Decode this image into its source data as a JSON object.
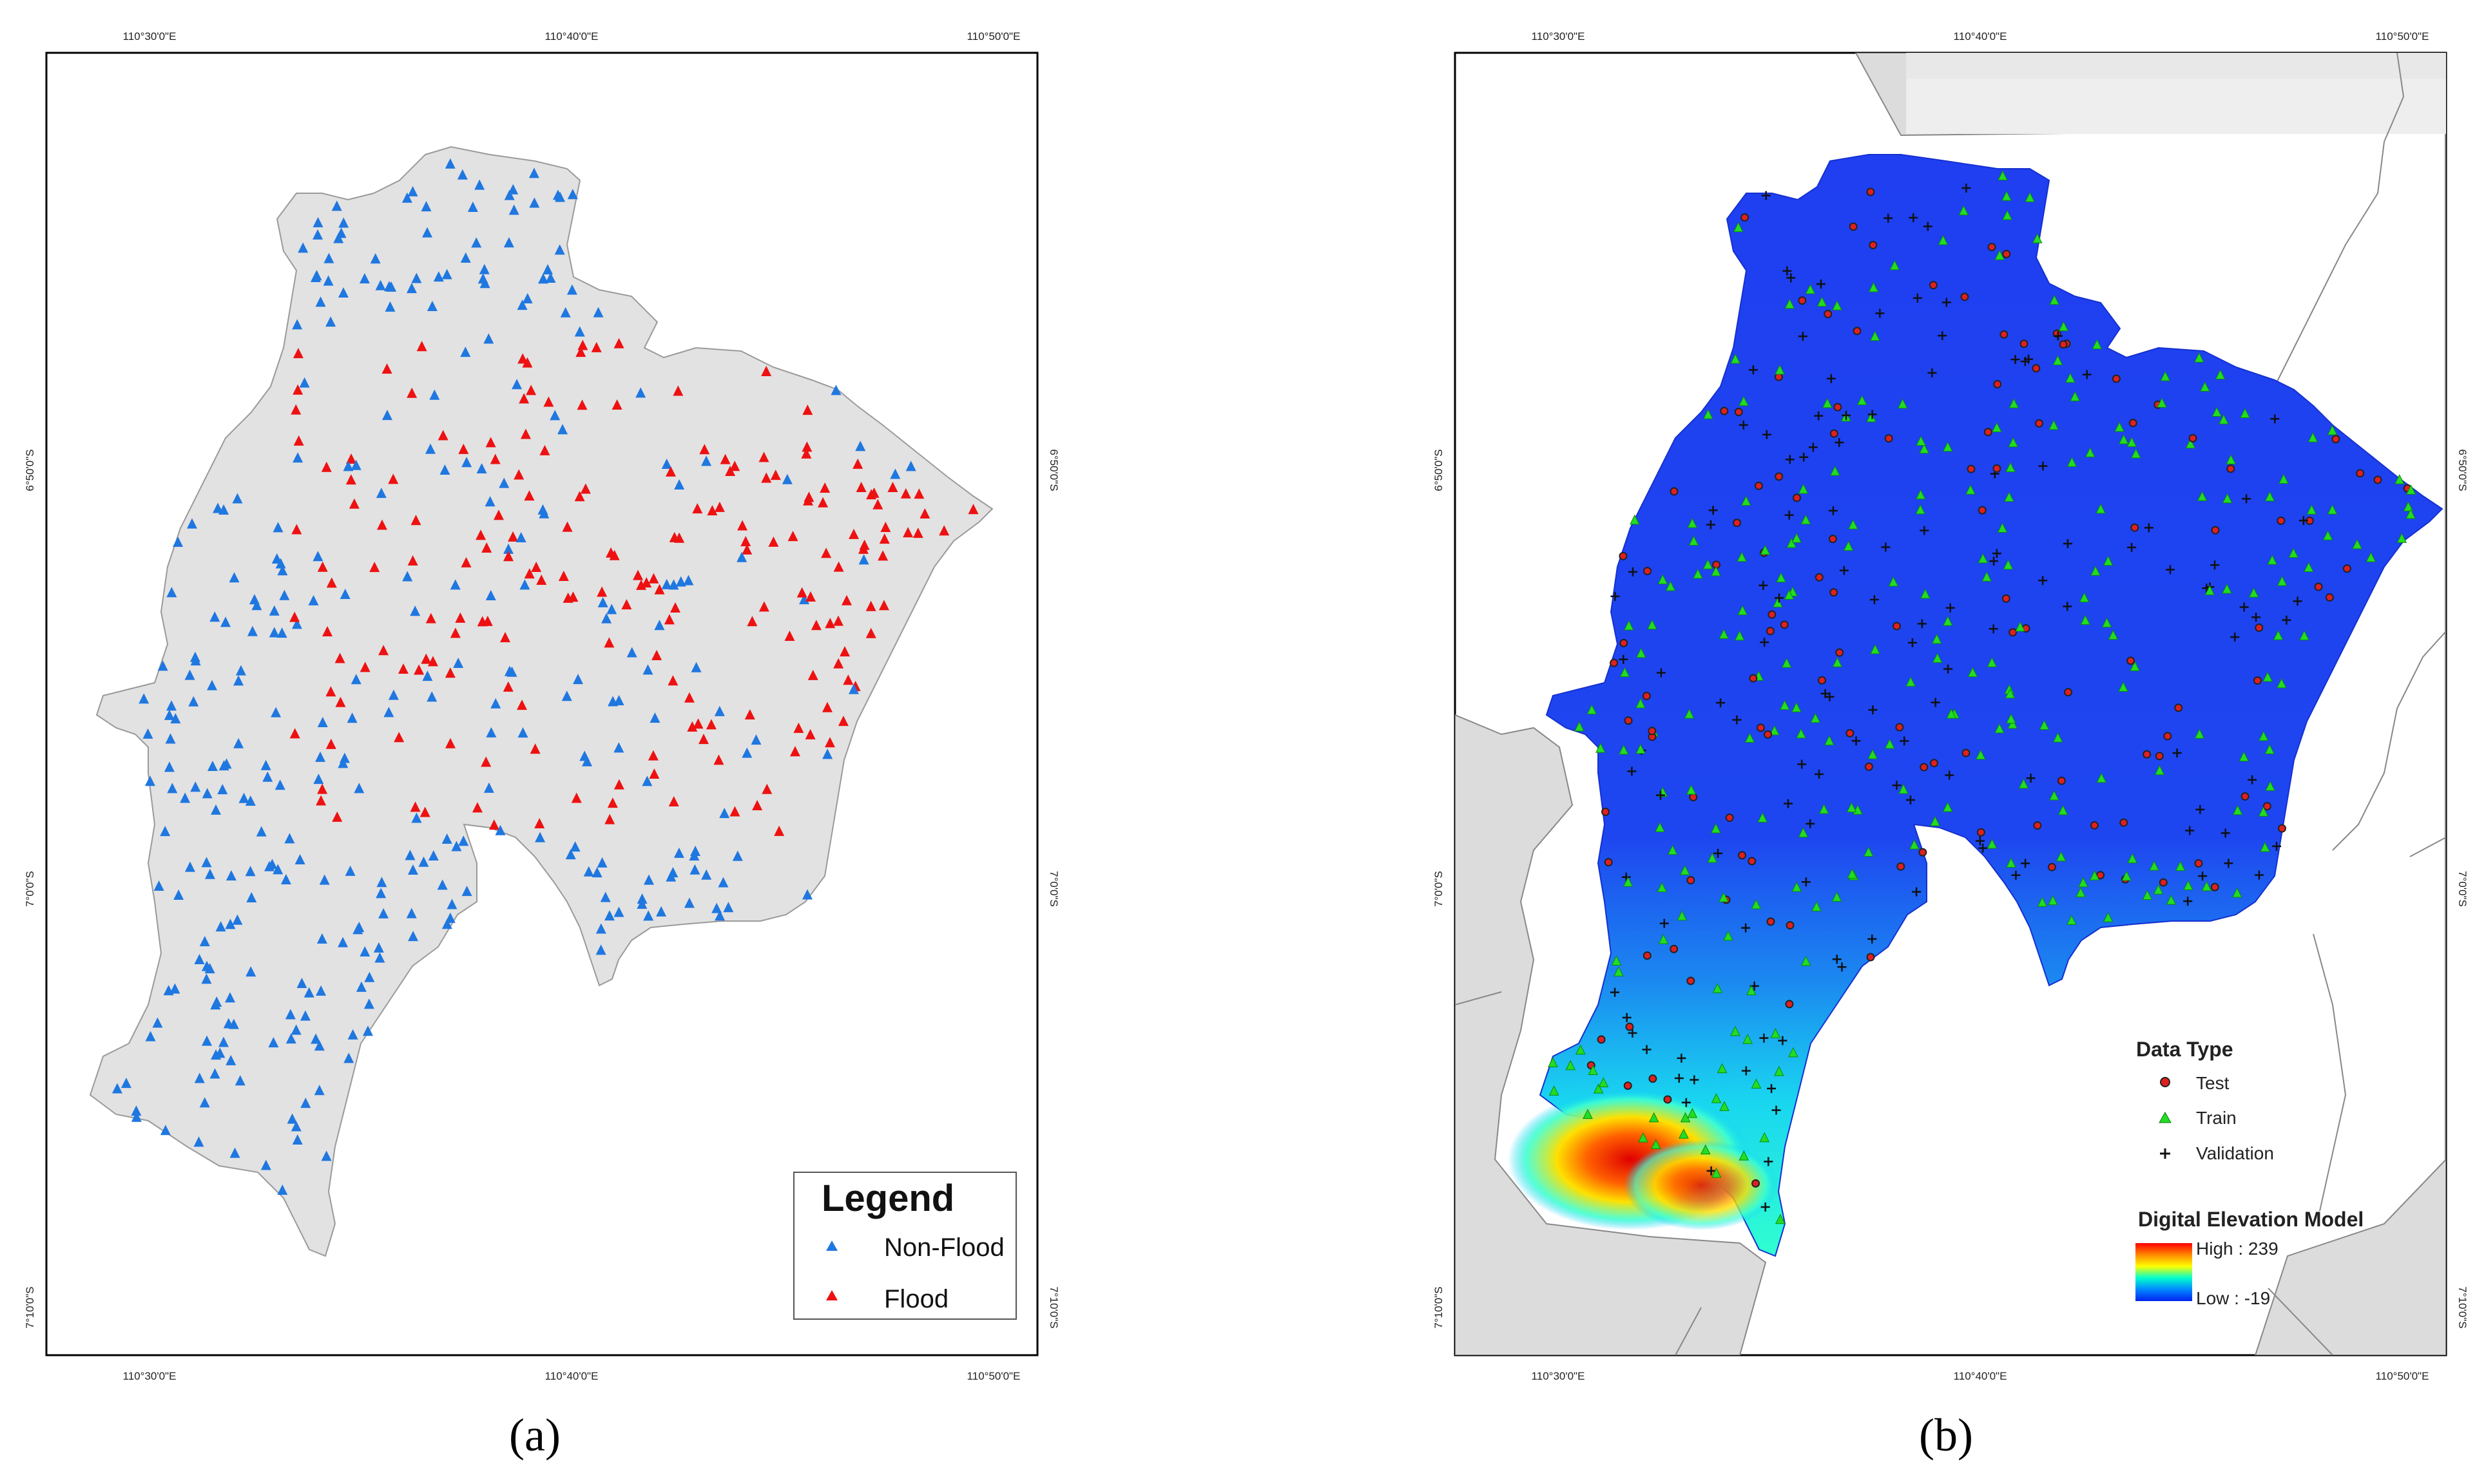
{
  "panel_a": {
    "caption": "(a)",
    "legend": {
      "title": "Legend",
      "items": [
        {
          "label": "Non-Flood",
          "color": "#1f77e0"
        },
        {
          "label": "Flood",
          "color": "#ee1111"
        }
      ]
    },
    "x_ticks": [
      "110°30'0\"E",
      "110°40'0\"E",
      "110°50'0\"E"
    ],
    "y_ticks": [
      "6°50'0\"S",
      "7°0'0\"S",
      "7°10'0\"S"
    ]
  },
  "panel_b": {
    "caption": "(b)",
    "data_type": {
      "title": "Data Type",
      "items": [
        {
          "label": "Test",
          "symbol": "red-circle",
          "color": "#e02020"
        },
        {
          "label": "Train",
          "symbol": "green-triangle",
          "color": "#22dd22"
        },
        {
          "label": "Validation",
          "symbol": "black-cross",
          "color": "#111111"
        }
      ]
    },
    "dem": {
      "title": "Digital Elevation Model",
      "high_label": "High : 239",
      "low_label": "Low : -19",
      "gradient": [
        "#ff0000",
        "#ff8800",
        "#ffff00",
        "#00ffcc",
        "#0088ff",
        "#0022ee"
      ]
    },
    "x_ticks": [
      "110°30'0\"E",
      "110°40'0\"E",
      "110°50'0\"E"
    ],
    "y_ticks": [
      "6°50'0\"S",
      "7°0'0\"S",
      "7°10'0\"S"
    ]
  },
  "colors": {
    "land": "#dcdcdc",
    "region_gray": "#e2e2e2",
    "dem_blue": "#1c3df0"
  }
}
